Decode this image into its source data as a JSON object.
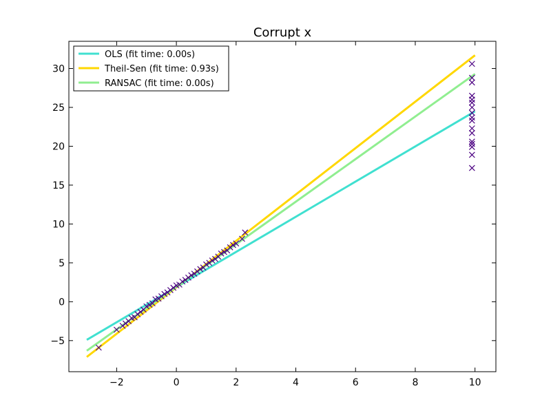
{
  "chart_data": {
    "type": "scatter",
    "title": "Corrupt x",
    "xlabel": "",
    "ylabel": "",
    "xlim": [
      -3.6,
      10.7
    ],
    "ylim": [
      -9,
      33.5
    ],
    "xticks": [
      -2,
      0,
      2,
      4,
      6,
      8,
      10
    ],
    "yticks": [
      -5,
      0,
      5,
      10,
      15,
      20,
      25,
      30
    ],
    "xtick_labels": [
      "−2",
      "0",
      "2",
      "4",
      "6",
      "8",
      "10"
    ],
    "ytick_labels": [
      "−5",
      "0",
      "5",
      "10",
      "15",
      "20",
      "25",
      "30"
    ],
    "grid": false,
    "legend_position": "top-left",
    "marker_color": "#4b0082",
    "marker": "x",
    "scatter_points": [
      [
        -2.6,
        -5.9
      ],
      [
        -2.0,
        -3.6
      ],
      [
        -1.8,
        -3.1
      ],
      [
        -1.7,
        -2.8
      ],
      [
        -1.6,
        -2.5
      ],
      [
        -1.5,
        -2.1
      ],
      [
        -1.4,
        -2.0
      ],
      [
        -1.3,
        -1.6
      ],
      [
        -1.2,
        -1.3
      ],
      [
        -1.1,
        -1.0
      ],
      [
        -1.0,
        -0.6
      ],
      [
        -0.9,
        -0.4
      ],
      [
        -0.8,
        -0.2
      ],
      [
        -0.7,
        0.3
      ],
      [
        -0.6,
        0.4
      ],
      [
        -0.5,
        0.7
      ],
      [
        -0.4,
        1.0
      ],
      [
        -0.3,
        1.2
      ],
      [
        -0.2,
        1.5
      ],
      [
        -0.1,
        1.8
      ],
      [
        0.0,
        2.1
      ],
      [
        0.1,
        2.2
      ],
      [
        0.2,
        2.6
      ],
      [
        0.3,
        2.8
      ],
      [
        0.4,
        3.1
      ],
      [
        0.5,
        3.4
      ],
      [
        0.6,
        3.6
      ],
      [
        0.7,
        3.9
      ],
      [
        0.8,
        4.2
      ],
      [
        0.9,
        4.4
      ],
      [
        1.0,
        4.8
      ],
      [
        1.1,
        5.0
      ],
      [
        1.2,
        5.3
      ],
      [
        1.3,
        5.5
      ],
      [
        1.4,
        5.8
      ],
      [
        1.5,
        6.2
      ],
      [
        1.6,
        6.4
      ],
      [
        1.7,
        6.6
      ],
      [
        1.8,
        7.0
      ],
      [
        1.9,
        7.3
      ],
      [
        2.0,
        7.5
      ],
      [
        2.2,
        8.1
      ],
      [
        2.3,
        8.9
      ],
      [
        9.9,
        30.6
      ],
      [
        9.9,
        28.8
      ],
      [
        9.9,
        28.2
      ],
      [
        9.9,
        26.5
      ],
      [
        9.9,
        26.0
      ],
      [
        9.9,
        25.6
      ],
      [
        9.9,
        25.0
      ],
      [
        9.9,
        24.3
      ],
      [
        9.9,
        23.7
      ],
      [
        9.9,
        23.3
      ],
      [
        9.9,
        22.3
      ],
      [
        9.9,
        21.7
      ],
      [
        9.9,
        20.6
      ],
      [
        9.9,
        20.3
      ],
      [
        9.9,
        19.9
      ],
      [
        9.9,
        18.9
      ],
      [
        9.9,
        17.2
      ]
    ],
    "series": [
      {
        "name": "OLS (fit time: 0.00s)",
        "color": "#40e0d0",
        "x": [
          -3,
          10
        ],
        "y": [
          -4.9,
          24.5
        ]
      },
      {
        "name": "Theil-Sen (fit time: 0.93s)",
        "color": "#ffd700",
        "x": [
          -3,
          10
        ],
        "y": [
          -7.1,
          31.7
        ]
      },
      {
        "name": "RANSAC (fit time: 0.00s)",
        "color": "#90ee90",
        "x": [
          -3,
          10
        ],
        "y": [
          -6.3,
          29.3
        ]
      }
    ]
  }
}
